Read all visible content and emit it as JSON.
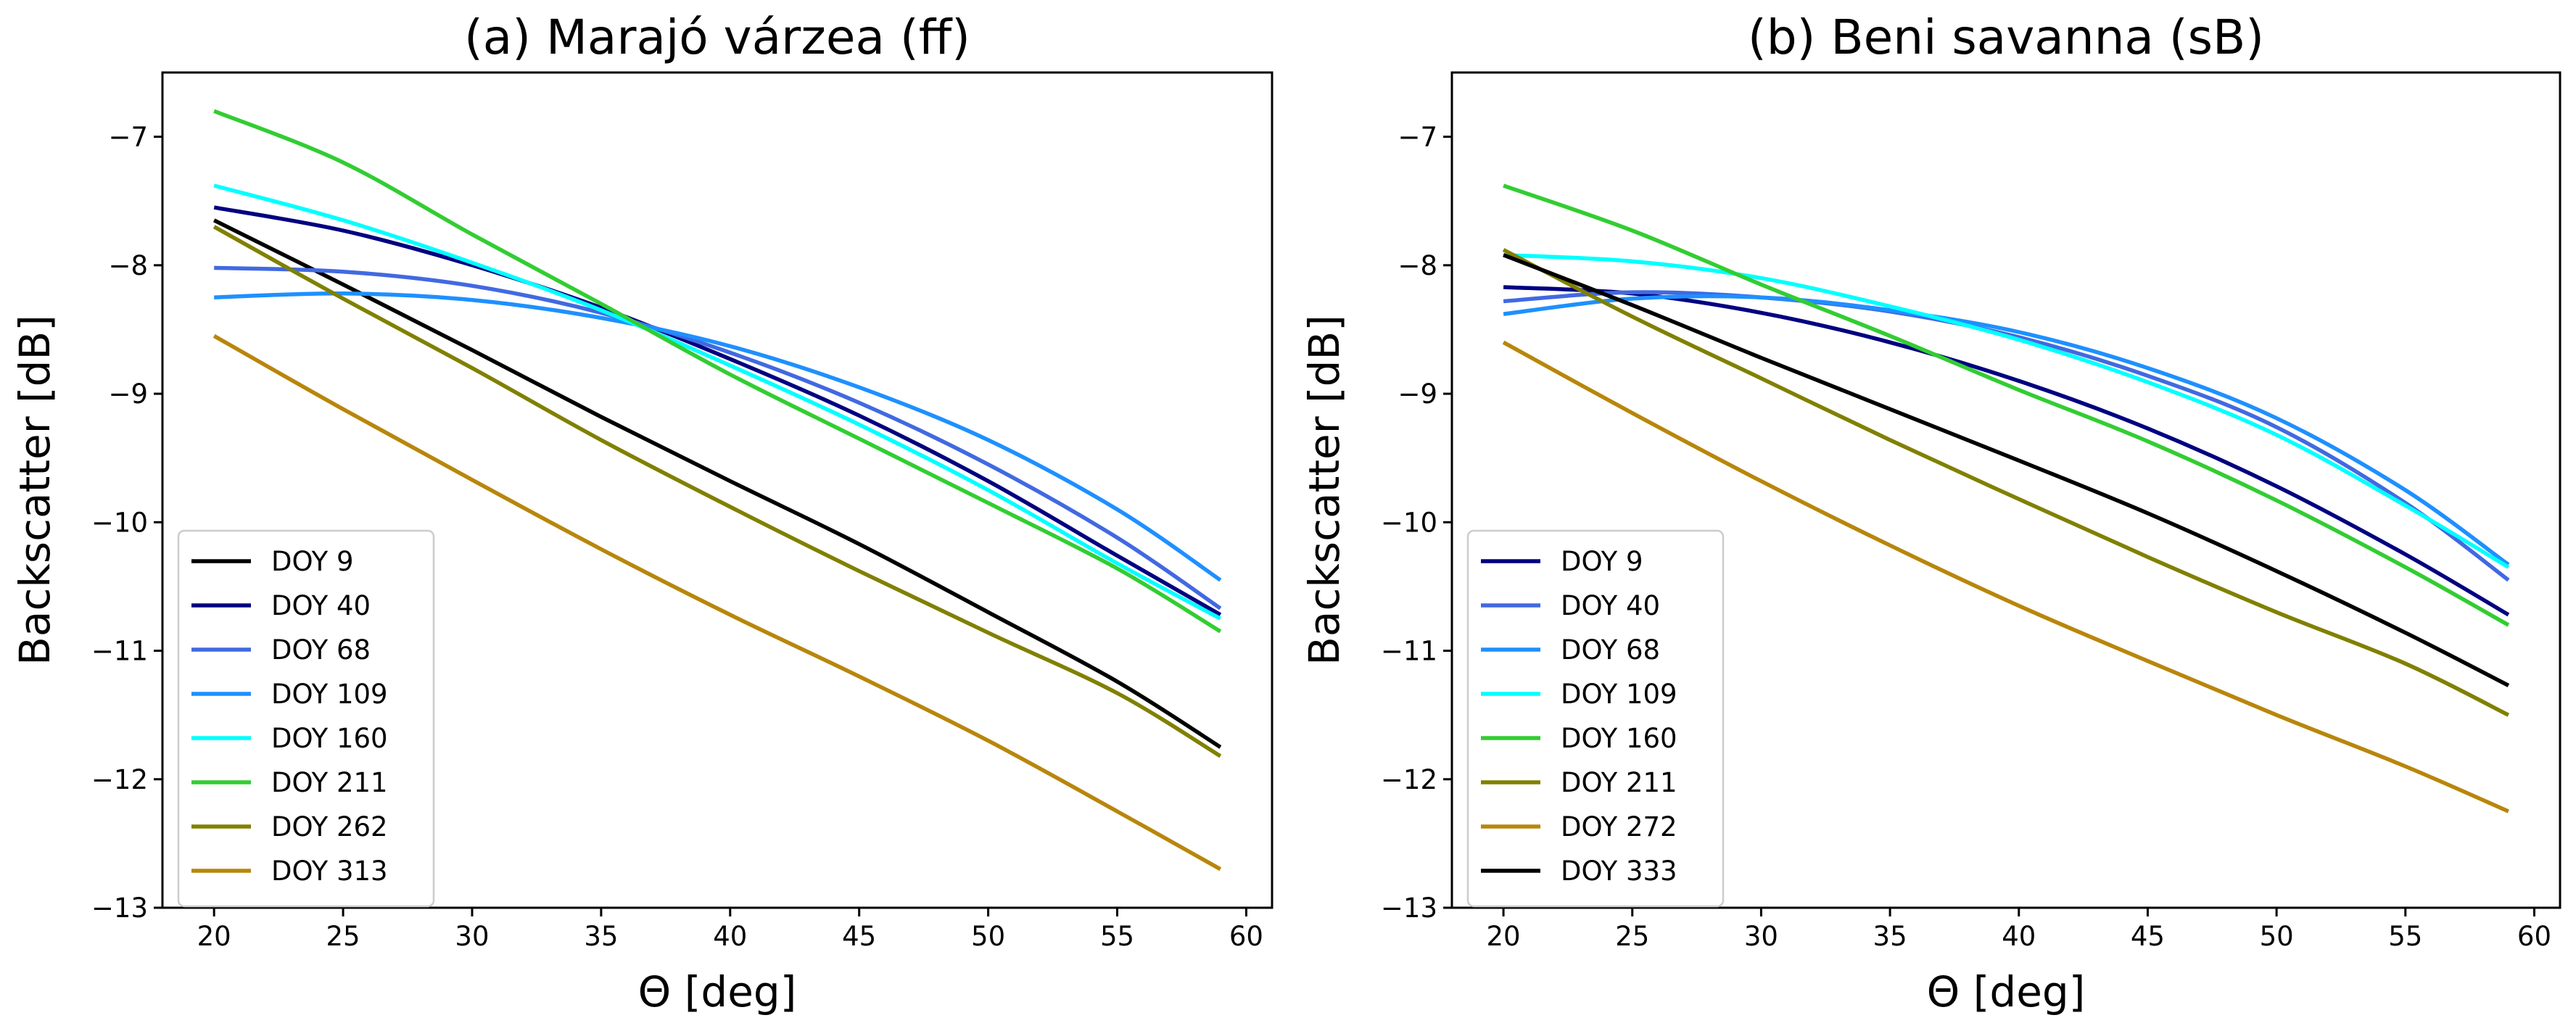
{
  "chart_data": [
    {
      "type": "line",
      "title": "(a) Marajó várzea (ff)",
      "xlabel": "Θ [deg]",
      "ylabel": "Backscatter [dB]",
      "xlim": [
        18,
        61
      ],
      "ylim": [
        -13,
        -6.5
      ],
      "xticks": [
        20,
        25,
        30,
        35,
        40,
        45,
        50,
        55,
        60
      ],
      "yticks": [
        -13,
        -12,
        -11,
        -10,
        -9,
        -8,
        -7
      ],
      "grid": false,
      "legend": "lower-left",
      "x": [
        20,
        25,
        30,
        35,
        40,
        45,
        50,
        55,
        59
      ],
      "series": [
        {
          "name": "DOY 9",
          "color": "#000000",
          "values": [
            -7.65,
            -8.15,
            -8.66,
            -9.18,
            -9.68,
            -10.17,
            -10.7,
            -11.24,
            -11.75
          ]
        },
        {
          "name": "DOY 40",
          "color": "#000080",
          "values": [
            -7.55,
            -7.73,
            -8.0,
            -8.33,
            -8.73,
            -9.17,
            -9.68,
            -10.26,
            -10.72
          ]
        },
        {
          "name": "DOY 68",
          "color": "#4169e1",
          "values": [
            -8.02,
            -8.05,
            -8.16,
            -8.37,
            -8.68,
            -9.07,
            -9.55,
            -10.12,
            -10.67
          ]
        },
        {
          "name": "DOY 109",
          "color": "#1e90ff",
          "values": [
            -8.25,
            -8.22,
            -8.27,
            -8.41,
            -8.63,
            -8.95,
            -9.36,
            -9.9,
            -10.45
          ]
        },
        {
          "name": "DOY 160",
          "color": "#00ffff",
          "values": [
            -7.38,
            -7.65,
            -7.98,
            -8.35,
            -8.78,
            -9.24,
            -9.75,
            -10.32,
            -10.75
          ]
        },
        {
          "name": "DOY 211",
          "color": "#32cd32",
          "values": [
            -6.8,
            -7.2,
            -7.76,
            -8.3,
            -8.85,
            -9.35,
            -9.85,
            -10.36,
            -10.85
          ]
        },
        {
          "name": "DOY 262",
          "color": "#808000",
          "values": [
            -7.7,
            -8.26,
            -8.8,
            -9.36,
            -9.88,
            -10.38,
            -10.86,
            -11.33,
            -11.82
          ]
        },
        {
          "name": "DOY 313",
          "color": "#b8860b",
          "values": [
            -8.55,
            -9.12,
            -9.67,
            -10.21,
            -10.72,
            -11.2,
            -11.7,
            -12.25,
            -12.7
          ]
        }
      ]
    },
    {
      "type": "line",
      "title": "(b) Beni savanna (sB)",
      "xlabel": "Θ [deg]",
      "ylabel": "Backscatter [dB]",
      "xlim": [
        18,
        61
      ],
      "ylim": [
        -13,
        -6.5
      ],
      "xticks": [
        20,
        25,
        30,
        35,
        40,
        45,
        50,
        55,
        60
      ],
      "yticks": [
        -13,
        -12,
        -11,
        -10,
        -9,
        -8,
        -7
      ],
      "grid": false,
      "legend": "lower-left",
      "x": [
        20,
        25,
        30,
        35,
        40,
        45,
        50,
        55,
        59
      ],
      "series": [
        {
          "name": "DOY 9",
          "color": "#000080",
          "values": [
            -8.17,
            -8.22,
            -8.37,
            -8.6,
            -8.9,
            -9.27,
            -9.72,
            -10.25,
            -10.72
          ]
        },
        {
          "name": "DOY 40",
          "color": "#4169e1",
          "values": [
            -8.28,
            -8.21,
            -8.25,
            -8.36,
            -8.56,
            -8.86,
            -9.26,
            -9.85,
            -10.45
          ]
        },
        {
          "name": "DOY 68",
          "color": "#1e90ff",
          "values": [
            -8.38,
            -8.26,
            -8.25,
            -8.35,
            -8.52,
            -8.8,
            -9.19,
            -9.75,
            -10.33
          ]
        },
        {
          "name": "DOY 109",
          "color": "#00ffff",
          "values": [
            -7.92,
            -7.97,
            -8.1,
            -8.32,
            -8.58,
            -8.91,
            -9.32,
            -9.87,
            -10.35
          ]
        },
        {
          "name": "DOY 160",
          "color": "#32cd32",
          "values": [
            -7.38,
            -7.73,
            -8.15,
            -8.55,
            -8.97,
            -9.37,
            -9.83,
            -10.35,
            -10.8
          ]
        },
        {
          "name": "DOY 211",
          "color": "#808000",
          "values": [
            -7.88,
            -8.4,
            -8.88,
            -9.36,
            -9.82,
            -10.27,
            -10.7,
            -11.1,
            -11.5
          ]
        },
        {
          "name": "DOY 272",
          "color": "#b8860b",
          "values": [
            -8.6,
            -9.15,
            -9.68,
            -10.18,
            -10.65,
            -11.08,
            -11.5,
            -11.9,
            -12.25
          ]
        },
        {
          "name": "DOY 333",
          "color": "#000000",
          "values": [
            -7.92,
            -8.31,
            -8.72,
            -9.12,
            -9.52,
            -9.93,
            -10.38,
            -10.86,
            -11.27
          ]
        }
      ]
    }
  ]
}
